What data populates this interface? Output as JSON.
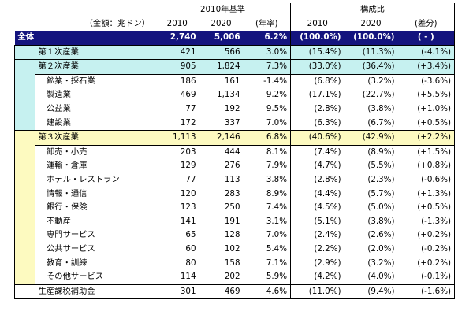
{
  "header": {
    "unit_label": "（金額：兆ドン）",
    "group1": "2010年基準",
    "group2": "構成比",
    "cols": [
      "2010",
      "2020",
      "(年率)",
      "2010",
      "2020",
      "(差分)"
    ]
  },
  "rows": [
    {
      "name": "全体",
      "v2010": "2,740",
      "v2020": "5,006",
      "rate": "6.2%",
      "s2010": "(100.0%)",
      "s2020": "(100.0%)",
      "diff": "( - )"
    },
    {
      "name": "第１次産業",
      "v2010": "421",
      "v2020": "566",
      "rate": "3.0%",
      "s2010": "(15.4%)",
      "s2020": "(11.3%)",
      "diff": "(-4.1%)"
    },
    {
      "name": "第２次産業",
      "v2010": "905",
      "v2020": "1,824",
      "rate": "7.3%",
      "s2010": "(33.0%)",
      "s2020": "(36.4%)",
      "diff": "(+3.4%)"
    },
    {
      "name": "鉱業・採石業",
      "v2010": "186",
      "v2020": "161",
      "rate": "-1.4%",
      "s2010": "(6.8%)",
      "s2020": "(3.2%)",
      "diff": "(-3.6%)"
    },
    {
      "name": "製造業",
      "v2010": "469",
      "v2020": "1,134",
      "rate": "9.2%",
      "s2010": "(17.1%)",
      "s2020": "(22.7%)",
      "diff": "(+5.5%)"
    },
    {
      "name": "公益業",
      "v2010": "77",
      "v2020": "192",
      "rate": "9.5%",
      "s2010": "(2.8%)",
      "s2020": "(3.8%)",
      "diff": "(+1.0%)"
    },
    {
      "name": "建設業",
      "v2010": "172",
      "v2020": "337",
      "rate": "7.0%",
      "s2010": "(6.3%)",
      "s2020": "(6.7%)",
      "diff": "(+0.5%)"
    },
    {
      "name": "第３次産業",
      "v2010": "1,113",
      "v2020": "2,146",
      "rate": "6.8%",
      "s2010": "(40.6%)",
      "s2020": "(42.9%)",
      "diff": "(+2.2%)"
    },
    {
      "name": "卸売・小売",
      "v2010": "203",
      "v2020": "444",
      "rate": "8.1%",
      "s2010": "(7.4%)",
      "s2020": "(8.9%)",
      "diff": "(+1.5%)"
    },
    {
      "name": "運輸・倉庫",
      "v2010": "129",
      "v2020": "276",
      "rate": "7.9%",
      "s2010": "(4.7%)",
      "s2020": "(5.5%)",
      "diff": "(+0.8%)"
    },
    {
      "name": "ホテル・レストラン",
      "v2010": "77",
      "v2020": "113",
      "rate": "3.8%",
      "s2010": "(2.8%)",
      "s2020": "(2.3%)",
      "diff": "(-0.6%)"
    },
    {
      "name": "情報・通信",
      "v2010": "120",
      "v2020": "283",
      "rate": "8.9%",
      "s2010": "(4.4%)",
      "s2020": "(5.7%)",
      "diff": "(+1.3%)"
    },
    {
      "name": "銀行・保険",
      "v2010": "123",
      "v2020": "250",
      "rate": "7.4%",
      "s2010": "(4.5%)",
      "s2020": "(5.0%)",
      "diff": "(+0.5%)"
    },
    {
      "name": "不動産",
      "v2010": "141",
      "v2020": "191",
      "rate": "3.1%",
      "s2010": "(5.1%)",
      "s2020": "(3.8%)",
      "diff": "(-1.3%)"
    },
    {
      "name": "専門サービス",
      "v2010": "65",
      "v2020": "128",
      "rate": "7.0%",
      "s2010": "(2.4%)",
      "s2020": "(2.6%)",
      "diff": "(+0.2%)"
    },
    {
      "name": "公共サービス",
      "v2010": "60",
      "v2020": "102",
      "rate": "5.4%",
      "s2010": "(2.2%)",
      "s2020": "(2.0%)",
      "diff": "(-0.2%)"
    },
    {
      "name": "教育・訓練",
      "v2010": "80",
      "v2020": "158",
      "rate": "7.1%",
      "s2010": "(2.9%)",
      "s2020": "(3.2%)",
      "diff": "(+0.2%)"
    },
    {
      "name": "その他サービス",
      "v2010": "114",
      "v2020": "202",
      "rate": "5.9%",
      "s2010": "(4.2%)",
      "s2020": "(4.0%)",
      "diff": "(-0.1%)"
    },
    {
      "name": "生産課税補助金",
      "v2010": "301",
      "v2020": "469",
      "rate": "4.6%",
      "s2010": "(11.0%)",
      "s2020": "(9.4%)",
      "diff": "(-1.6%)"
    }
  ],
  "colors": {
    "total_bg": "#14147e",
    "primary_secondary_bg": "#c6f1f0",
    "tertiary_bg": "#fdfac0"
  }
}
